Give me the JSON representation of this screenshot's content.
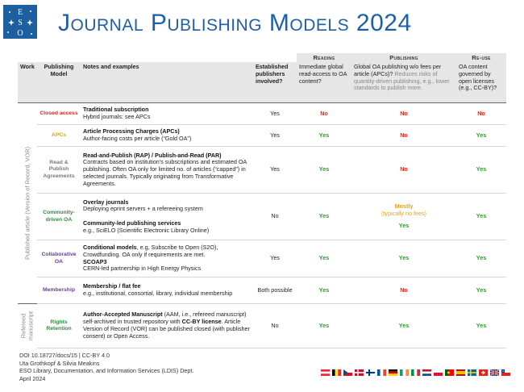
{
  "logo": {
    "text": "ESO"
  },
  "title": "Journal Publishing Models 2024",
  "groups": {
    "reading": "Reading",
    "publishing": "Publishing",
    "reuse": "Re-use"
  },
  "headers": {
    "work": "Work",
    "model": "Publishing Model",
    "notes": "Notes and examples",
    "established": "Established publishers involved?",
    "reading": "Immediate global read-access to OA content?",
    "publishing_main": "Global OA publishing w/o fees per article (APCs)?",
    "publishing_note": "Reduces risks of quantity-driven publishing, e.g., lower standards to publish more.",
    "reuse": "OA content governed by open licenses (e.g., CC-BY)?"
  },
  "work_labels": {
    "published": "Published article (Version of Record, VOR)",
    "refereed": "Refereed manuscript"
  },
  "rows": [
    {
      "model": "Closed access",
      "note_title": "Traditional subscription",
      "note_text": "Hybrid journals: see APCs",
      "established": "Yes",
      "reading": "No",
      "publishing": "No",
      "reuse": "No"
    },
    {
      "model": "APCs",
      "note_title": "Article Processing Charges (APCs)",
      "note_text": "Author-facing costs per article (“Gold OA”)",
      "established": "Yes",
      "reading": "Yes",
      "publishing": "No",
      "reuse": "Yes"
    },
    {
      "model": "Read & Publish Agreements",
      "note_title": "Read-and-Publish (RAP) / Publish-and-Read (PAR)",
      "note_text": "Contracts based on institution’s subscriptions and estimated OA publishing. Often OA only for limited no. of articles (“capped”) in selected journals. Typically originating from Transformative Agreements.",
      "established": "Yes",
      "reading": "Yes",
      "publishing": "No",
      "reuse": "Yes"
    },
    {
      "model": "Community-driven OA",
      "note_title": "Overlay journals",
      "note_text": "Deploying eprint servers + a refereeing system",
      "note_title2": "Community-led publishing services",
      "note_text2": "e.g., SciELO (Scientific Electronic Library Online)",
      "established": "No",
      "reading": "Yes",
      "publishing": "Mostly",
      "publishing_sub": "(typically no fees)",
      "publishing2": "Yes",
      "reuse": "Yes"
    },
    {
      "model": "Collaborative OA",
      "note_title": "Conditional models",
      "note_text": ", e.g, Subscribe to Open (S2O), Crowdfunding. OA only if requirements are met.",
      "note_title2": "SCOAP3",
      "note_text2": "CERN-led partnership in High Energy Physics",
      "established": "Yes",
      "reading": "Yes",
      "publishing": "Yes",
      "reuse": "Yes"
    },
    {
      "model": "Membership",
      "note_title": "Membership / flat fee",
      "note_text": "e.g., institutional, consortial, library, individual membership",
      "established": "Both possible",
      "reading": "Yes",
      "publishing": "No",
      "reuse": "Yes"
    },
    {
      "model": "Rights Retention",
      "note_title": "Author-Accepted Manuscript",
      "note_text": " (AAM, i.e., refereed manuscript) self-archived in trusted repository with",
      "note_title2": "CC-BY license",
      "note_text2": ". Article Version of Record (VOR) can be published closed (with publisher consent) or Open Access.",
      "established": "No",
      "reading": "Yes",
      "publishing": "Yes",
      "reuse": "Yes"
    }
  ],
  "footer": {
    "doi": "DOI 10.18727/docs/15  |  CC-BY 4.0",
    "authors": "Uta Grothkopf & Silvia Meakins",
    "dept": "ESO Library, Documentation, and Information Services (LDIS) Dept.",
    "date": "April 2024"
  },
  "colors": {
    "title": "#1f5fa5",
    "yes": "#2e9a2e",
    "no": "#e8231a",
    "mostly": "#e3a21a",
    "logo_bg": "#1d5f9f",
    "header_bg": "#e6e6e6"
  },
  "flags": [
    "austria",
    "belgium",
    "czechia",
    "denmark",
    "finland",
    "france",
    "germany",
    "ireland",
    "italy",
    "netherlands",
    "poland",
    "portugal",
    "spain",
    "sweden",
    "switzerland",
    "uk",
    "chile"
  ]
}
